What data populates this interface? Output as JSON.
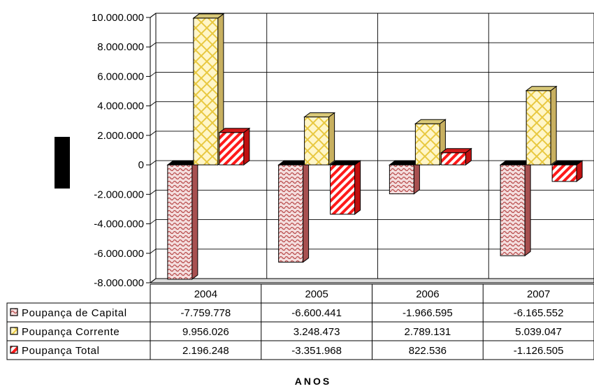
{
  "chart_data": {
    "type": "bar",
    "title": "",
    "xlabel": "ANOS",
    "ylabel": "",
    "ylim": [
      -8000000,
      10000000
    ],
    "y_ticks": [
      "10.000.000",
      "8.000.000",
      "6.000.000",
      "4.000.000",
      "2.000.000",
      "0",
      "-2.000.000",
      "-4.000.000",
      "-6.000.000",
      "-8.000.000"
    ],
    "y_tick_values": [
      10000000,
      8000000,
      6000000,
      4000000,
      2000000,
      0,
      -2000000,
      -4000000,
      -6000000,
      -8000000
    ],
    "categories": [
      "2004",
      "2005",
      "2006",
      "2007"
    ],
    "grid": true,
    "legend_placement": "data table below plot",
    "series": [
      {
        "name": "Poupança de Capital",
        "values": [
          -7759778,
          -6600441,
          -1966595,
          -6165552
        ],
        "labels": [
          "-7.759.778",
          "-6.600.441",
          "-1.966.595",
          "-6.165.552"
        ],
        "color": "#cc6666",
        "pattern": "wave"
      },
      {
        "name": "Poupança Corrente",
        "values": [
          9956026,
          3248473,
          2789131,
          5039047
        ],
        "labels": [
          "9.956.026",
          "3.248.473",
          "2.789.131",
          "5.039.047"
        ],
        "color": "#ffee88",
        "pattern": "lattice"
      },
      {
        "name": "Poupança Total",
        "values": [
          2196248,
          -3351968,
          822536,
          -1126505
        ],
        "labels": [
          "2.196.248",
          "-3.351.968",
          "822.536",
          "-1.126.505"
        ],
        "color": "#ff2222",
        "pattern": "diagonal"
      }
    ]
  }
}
